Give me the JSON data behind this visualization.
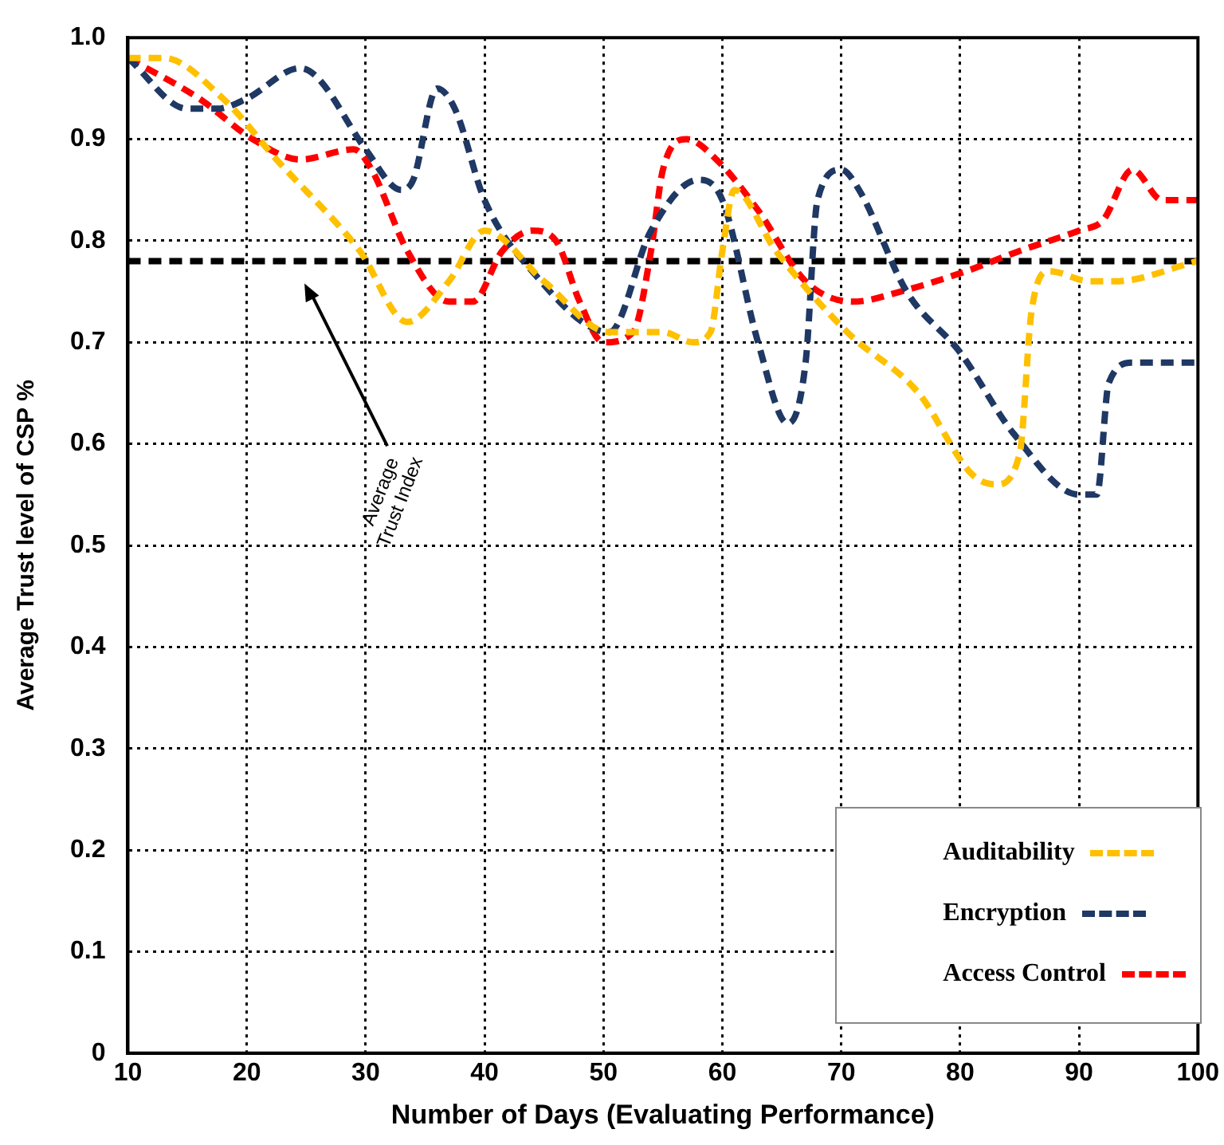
{
  "chart_data": {
    "type": "line",
    "xlabel": "Number of Days (Evaluating Performance)",
    "ylabel": "Average Trust level of CSP %",
    "xlim": [
      10,
      100
    ],
    "xticks": [
      10,
      20,
      30,
      40,
      50,
      60,
      70,
      80,
      90,
      100
    ],
    "ylim": [
      0,
      1
    ],
    "yticks": [
      0,
      0.1,
      0.2,
      0.3,
      0.4,
      0.5,
      0.6,
      0.7,
      0.8,
      0.9,
      {
        "value": 1,
        "label": "1.0"
      }
    ],
    "grid": true,
    "legend": "bottom right",
    "marker": "none",
    "line_style": "dashed",
    "series": [
      {
        "name": "Auditability",
        "color": "#ffc000",
        "x": [
          10,
          13,
          18,
          22.5,
          29.5,
          33.5,
          37,
          40,
          45,
          50.5,
          55,
          57.5,
          59,
          60,
          61,
          64.5,
          70.5,
          76.5,
          81,
          83,
          85,
          86,
          87.5,
          91,
          93,
          100
        ],
        "values": [
          0.98,
          0.98,
          0.94,
          0.88,
          0.79,
          0.72,
          0.76,
          0.81,
          0.76,
          0.71,
          0.71,
          0.7,
          0.71,
          0.79,
          0.85,
          0.79,
          0.71,
          0.65,
          0.57,
          0.56,
          0.59,
          0.73,
          0.77,
          0.76,
          0.76,
          0.78
        ]
      },
      {
        "name": "Encryption",
        "color": "#1f3864",
        "x": [
          10,
          15,
          17.5,
          20,
          24.5,
          26,
          30,
          33,
          34,
          36,
          37.5,
          40,
          44,
          50.5,
          54,
          58,
          60,
          63,
          65.5,
          67,
          68,
          70,
          71.5,
          75.5,
          80,
          84.5,
          90,
          91.5,
          92.5,
          94.5,
          100
        ],
        "values": [
          0.98,
          0.93,
          0.93,
          0.94,
          0.97,
          0.96,
          0.89,
          0.85,
          0.86,
          0.95,
          0.93,
          0.84,
          0.77,
          0.71,
          0.81,
          0.86,
          0.84,
          0.7,
          0.62,
          0.68,
          0.84,
          0.87,
          0.85,
          0.75,
          0.69,
          0.61,
          0.55,
          0.55,
          0.66,
          0.68,
          0.68
        ]
      },
      {
        "name": "Access Control",
        "color": "#ff0000",
        "x": [
          10,
          16,
          20.5,
          24.5,
          29,
          30.5,
          33.5,
          37,
          39,
          41.5,
          44,
          46,
          48,
          50,
          52.5,
          54,
          55,
          57,
          59.5,
          63,
          67,
          71,
          75,
          80.5,
          85,
          90,
          92,
          94.5,
          97,
          100
        ],
        "values": [
          0.98,
          0.94,
          0.9,
          0.88,
          0.89,
          0.87,
          0.79,
          0.74,
          0.74,
          0.79,
          0.81,
          0.8,
          0.74,
          0.7,
          0.71,
          0.79,
          0.87,
          0.9,
          0.88,
          0.83,
          0.76,
          0.74,
          0.75,
          0.77,
          0.79,
          0.81,
          0.82,
          0.87,
          0.84,
          0.84
        ]
      }
    ],
    "ref_lines": [
      {
        "axis": "y",
        "value": 0.78,
        "label": null,
        "color": "#000000",
        "line_style": "dashed"
      }
    ],
    "annotations": [
      "Average Trust Index"
    ]
  }
}
